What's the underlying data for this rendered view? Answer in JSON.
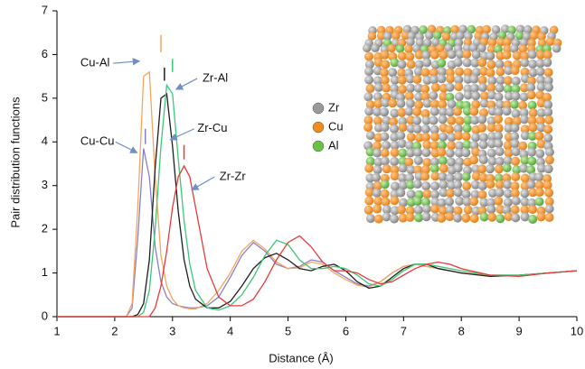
{
  "chart_data": {
    "type": "line",
    "xlabel": "Distance (Å)",
    "ylabel": "Pair distribution functions",
    "xlim": [
      1,
      10
    ],
    "ylim": [
      0,
      7
    ],
    "xticks": [
      1,
      2,
      3,
      4,
      5,
      6,
      7,
      8,
      9,
      10
    ],
    "yticks": [
      0,
      1,
      2,
      3,
      4,
      5,
      6,
      7
    ],
    "grid": false,
    "x": [
      1,
      2,
      2.2,
      2.3,
      2.4,
      2.5,
      2.6,
      2.7,
      2.8,
      2.9,
      3.0,
      3.1,
      3.2,
      3.3,
      3.4,
      3.6,
      3.8,
      4.0,
      4.2,
      4.4,
      4.6,
      4.8,
      5.0,
      5.2,
      5.4,
      5.6,
      5.8,
      6.0,
      6.2,
      6.4,
      6.6,
      6.8,
      7.0,
      7.2,
      7.4,
      7.6,
      7.8,
      8.0,
      8.5,
      9.0,
      9.5,
      10
    ],
    "series": [
      {
        "name": "Cu-Cu",
        "color": "#8a80c8",
        "marker_x": 2.53,
        "marker_y": [
          3.95,
          4.3
        ],
        "values": [
          0,
          0,
          0,
          0.2,
          1.8,
          3.85,
          3.2,
          1.6,
          0.8,
          0.45,
          0.3,
          0.25,
          0.22,
          0.2,
          0.2,
          0.25,
          0.45,
          0.9,
          1.4,
          1.7,
          1.5,
          1.2,
          1.1,
          1.15,
          1.3,
          1.25,
          1.05,
          0.9,
          0.75,
          0.7,
          0.8,
          1.0,
          1.15,
          1.2,
          1.15,
          1.1,
          1.05,
          1.0,
          0.95,
          0.95,
          1.0,
          1.05
        ]
      },
      {
        "name": "Cu-Al",
        "color": "#f7a55e",
        "marker_x": 2.8,
        "marker_y": [
          6.05,
          6.45
        ],
        "values": [
          0,
          0,
          0,
          0.3,
          2.5,
          5.5,
          5.6,
          3.2,
          1.4,
          0.7,
          0.4,
          0.25,
          0.2,
          0.18,
          0.18,
          0.3,
          0.6,
          1.0,
          1.5,
          1.75,
          1.55,
          1.25,
          1.1,
          1.12,
          1.25,
          1.2,
          1.0,
          0.85,
          0.72,
          0.68,
          0.8,
          1.0,
          1.15,
          1.2,
          1.15,
          1.1,
          1.05,
          1.0,
          0.95,
          0.95,
          1.0,
          1.05
        ]
      },
      {
        "name": "Zr-Cu",
        "color": "#1e1e1e",
        "marker_x": 2.86,
        "marker_y": [
          5.4,
          5.7
        ],
        "values": [
          0,
          0,
          0,
          0,
          0.05,
          0.3,
          1.3,
          3.4,
          5.0,
          5.1,
          3.9,
          2.4,
          1.3,
          0.7,
          0.4,
          0.2,
          0.2,
          0.35,
          0.7,
          1.1,
          1.35,
          1.45,
          1.3,
          1.1,
          1.05,
          1.15,
          1.2,
          1.05,
          0.8,
          0.65,
          0.7,
          0.9,
          1.1,
          1.2,
          1.2,
          1.1,
          1.05,
          1.0,
          0.92,
          0.95,
          1.0,
          1.05
        ]
      },
      {
        "name": "Zr-Al",
        "color": "#3cc878",
        "marker_x": 3.0,
        "marker_y": [
          5.6,
          5.9
        ],
        "values": [
          0,
          0,
          0,
          0,
          0,
          0.1,
          0.6,
          2.0,
          3.9,
          5.3,
          5.1,
          3.6,
          2.2,
          1.2,
          0.6,
          0.2,
          0.15,
          0.25,
          0.5,
          0.9,
          1.4,
          1.75,
          1.65,
          1.3,
          1.1,
          1.1,
          1.15,
          1.1,
          0.95,
          0.75,
          0.7,
          0.85,
          1.05,
          1.2,
          1.2,
          1.15,
          1.1,
          1.05,
          0.95,
          0.95,
          1.0,
          1.05
        ]
      },
      {
        "name": "Zr-Zr",
        "color": "#e83a3a",
        "marker_x": 3.2,
        "marker_y": [
          3.6,
          3.93
        ],
        "values": [
          0,
          0,
          0,
          0,
          0,
          0,
          0,
          0.2,
          0.7,
          1.5,
          2.5,
          3.2,
          3.45,
          3.2,
          2.5,
          1.1,
          0.45,
          0.25,
          0.25,
          0.4,
          0.8,
          1.3,
          1.7,
          1.85,
          1.6,
          1.25,
          1.05,
          1.05,
          1.0,
          0.85,
          0.75,
          0.8,
          0.95,
          1.1,
          1.2,
          1.25,
          1.2,
          1.1,
          0.95,
          0.92,
          1.0,
          1.05
        ]
      }
    ],
    "annotations": [
      {
        "text": "Cu-Al",
        "text_xy": [
          1.66,
          5.8
        ],
        "xy": [
          2.43,
          5.85
        ]
      },
      {
        "text": "Zr-Al",
        "text_xy": [
          3.74,
          5.45
        ],
        "xy": [
          3.06,
          5.2
        ]
      },
      {
        "text": "Zr-Cu",
        "text_xy": [
          3.69,
          4.3
        ],
        "xy": [
          2.96,
          4.05
        ]
      },
      {
        "text": "Cu-Cu",
        "text_xy": [
          1.7,
          4.0
        ],
        "xy": [
          2.39,
          3.75
        ]
      },
      {
        "text": "Zr-Zr",
        "text_xy": [
          4.04,
          3.2
        ],
        "xy": [
          3.33,
          2.9
        ]
      }
    ],
    "inset_legend": [
      {
        "name": "Zr",
        "color": "#9a9a9a"
      },
      {
        "name": "Cu",
        "color": "#f08c1e"
      },
      {
        "name": "Al",
        "color": "#6cc04a"
      }
    ]
  }
}
